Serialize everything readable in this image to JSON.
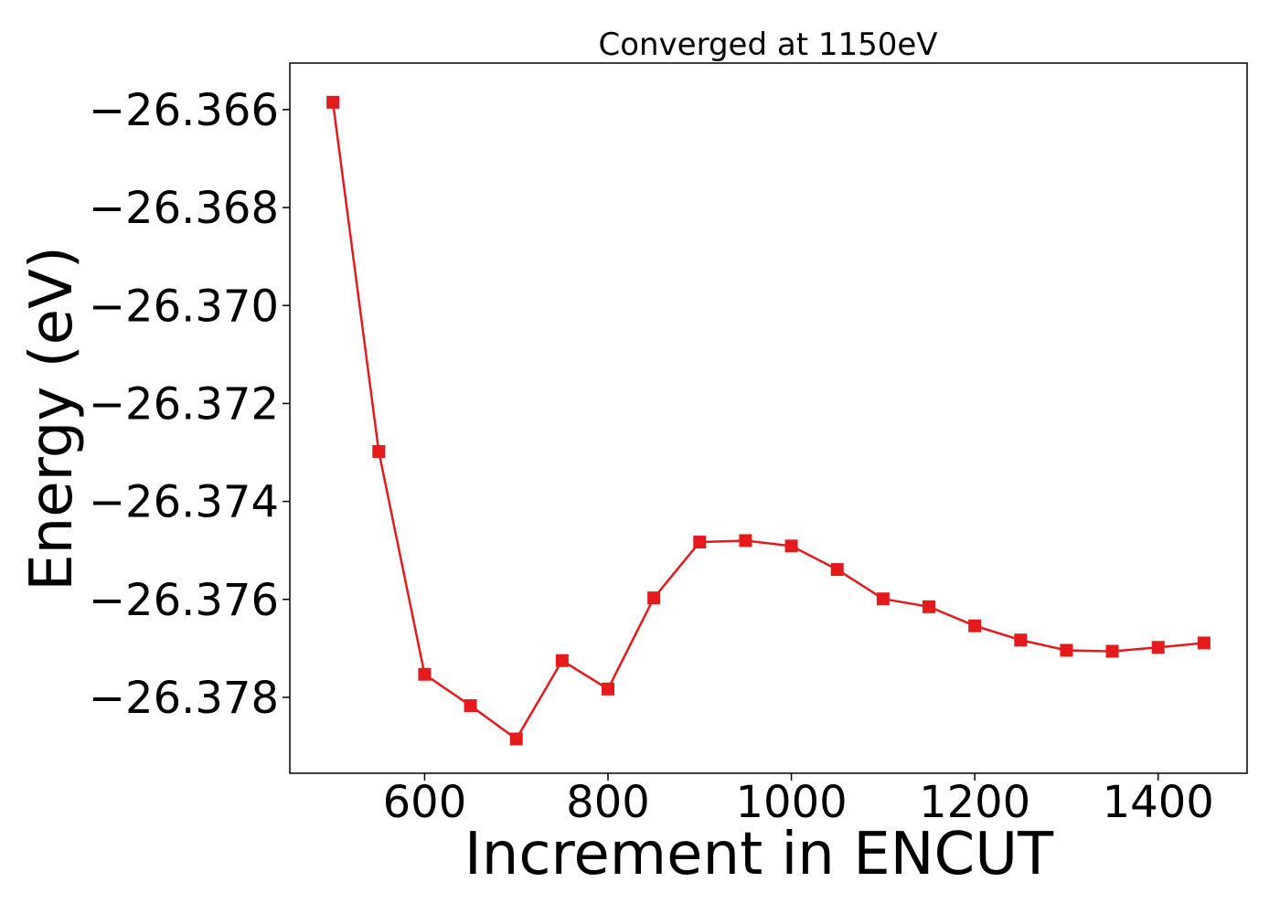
{
  "chart_data": {
    "type": "line",
    "title": "Converged at 1150eV",
    "xlabel": "Increment in ENCUT",
    "ylabel": "Energy (eV)",
    "xlim": [
      453,
      1497
    ],
    "ylim": [
      -26.37955,
      -26.36505
    ],
    "xticks": [
      600,
      800,
      1000,
      1200,
      1400
    ],
    "xtick_labels": [
      "600",
      "800",
      "1000",
      "1200",
      "1400"
    ],
    "yticks": [
      -26.366,
      -26.368,
      -26.37,
      -26.372,
      -26.374,
      -26.376,
      -26.378
    ],
    "ytick_labels": [
      "−26.366",
      "−26.368",
      "−26.370",
      "−26.372",
      "−26.374",
      "−26.376",
      "−26.378"
    ],
    "grid": false,
    "series": [
      {
        "color": "#e41a1c",
        "marker": "square",
        "x": [
          500,
          550,
          600,
          650,
          700,
          750,
          800,
          850,
          900,
          950,
          1000,
          1050,
          1100,
          1150,
          1200,
          1250,
          1300,
          1350,
          1400,
          1450
        ],
        "y": [
          -26.36585,
          -26.37298,
          -26.37753,
          -26.37817,
          -26.37885,
          -26.37725,
          -26.37783,
          -26.37597,
          -26.37483,
          -26.3748,
          -26.37491,
          -26.37539,
          -26.37599,
          -26.37615,
          -26.37654,
          -26.37683,
          -26.37704,
          -26.37706,
          -26.37698,
          -26.37689
        ]
      }
    ]
  }
}
